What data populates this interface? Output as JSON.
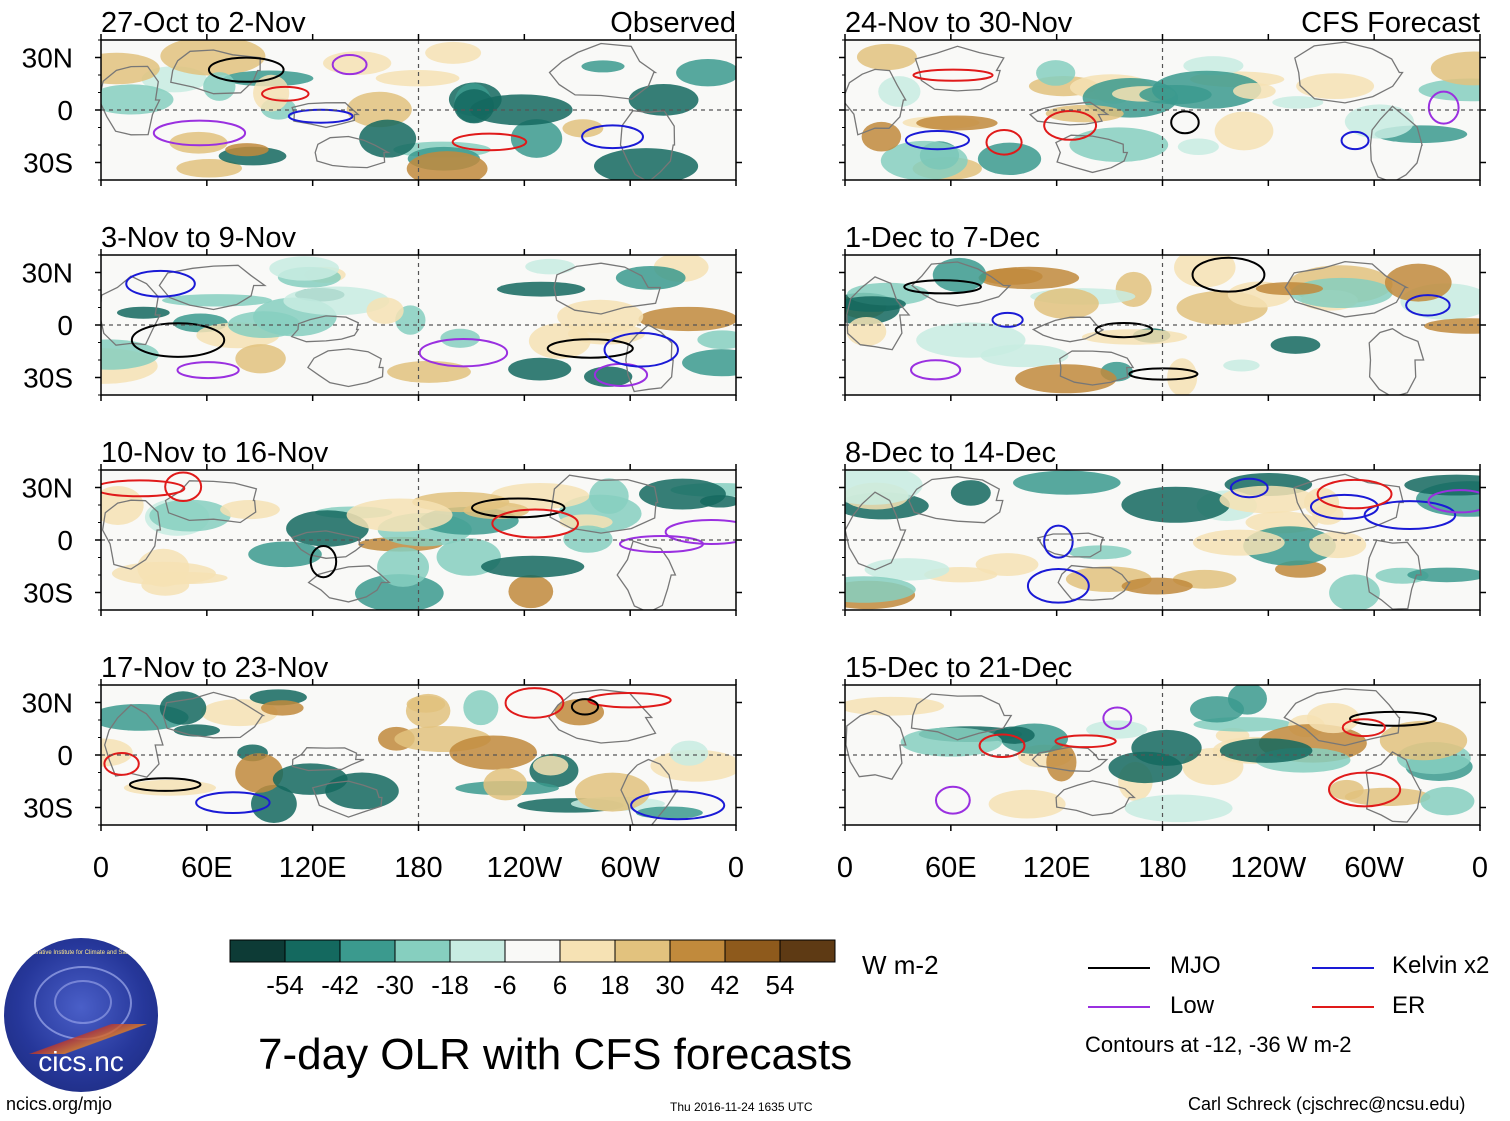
{
  "chart_data": {
    "type": "heatmap",
    "title": "7-day OLR with CFS forecasts",
    "units": "W m-2",
    "columns": [
      {
        "header": "Observed",
        "panels": [
          {
            "period": "27-Oct to 2-Nov"
          },
          {
            "period": "3-Nov to 9-Nov"
          },
          {
            "period": "10-Nov to 16-Nov"
          },
          {
            "period": "17-Nov to 23-Nov"
          }
        ]
      },
      {
        "header": "CFS Forecast",
        "panels": [
          {
            "period": "24-Nov to 30-Nov"
          },
          {
            "period": "1-Dec to 7-Dec"
          },
          {
            "period": "8-Dec to 14-Dec"
          },
          {
            "period": "15-Dec to 21-Dec"
          }
        ]
      }
    ],
    "y_ticks": [
      "30N",
      "0",
      "30S"
    ],
    "y_values": [
      30,
      0,
      -30
    ],
    "ylim": [
      -40,
      40
    ],
    "x_ticks": [
      "0",
      "60E",
      "120E",
      "180",
      "120W",
      "60W",
      "0"
    ],
    "x_values": [
      0,
      60,
      120,
      180,
      240,
      300,
      360
    ],
    "xlim": [
      0,
      360
    ],
    "colorbar": {
      "labels": [
        "-54",
        "-42",
        "-30",
        "-18",
        "-6",
        "6",
        "18",
        "30",
        "42",
        "54"
      ],
      "colors": [
        "#0d3b36",
        "#14695f",
        "#3b9a8e",
        "#86cfbf",
        "#c8ece2",
        "#f9f9f7",
        "#f6e2b4",
        "#e2c27e",
        "#c18a3c",
        "#8e5a1c",
        "#5e3a14"
      ]
    },
    "legend": [
      {
        "label": "MJO",
        "color": "#000000"
      },
      {
        "label": "Kelvin x2",
        "color": "#1a1ad6"
      },
      {
        "label": "Low",
        "color": "#9a30e0"
      },
      {
        "label": "ER",
        "color": "#e01a1a"
      }
    ],
    "contour_note": "Contours at -12, -36 W m-2"
  },
  "footer": {
    "left": "ncics.org/mjo",
    "center": "Thu 2016-11-24 1635 UTC",
    "right": "Carl Schreck (cjschrec@ncsu.edu)",
    "logo_text": "cics.nc",
    "logo_ring_text": "Cooperative Institute for Climate and Satellites"
  }
}
